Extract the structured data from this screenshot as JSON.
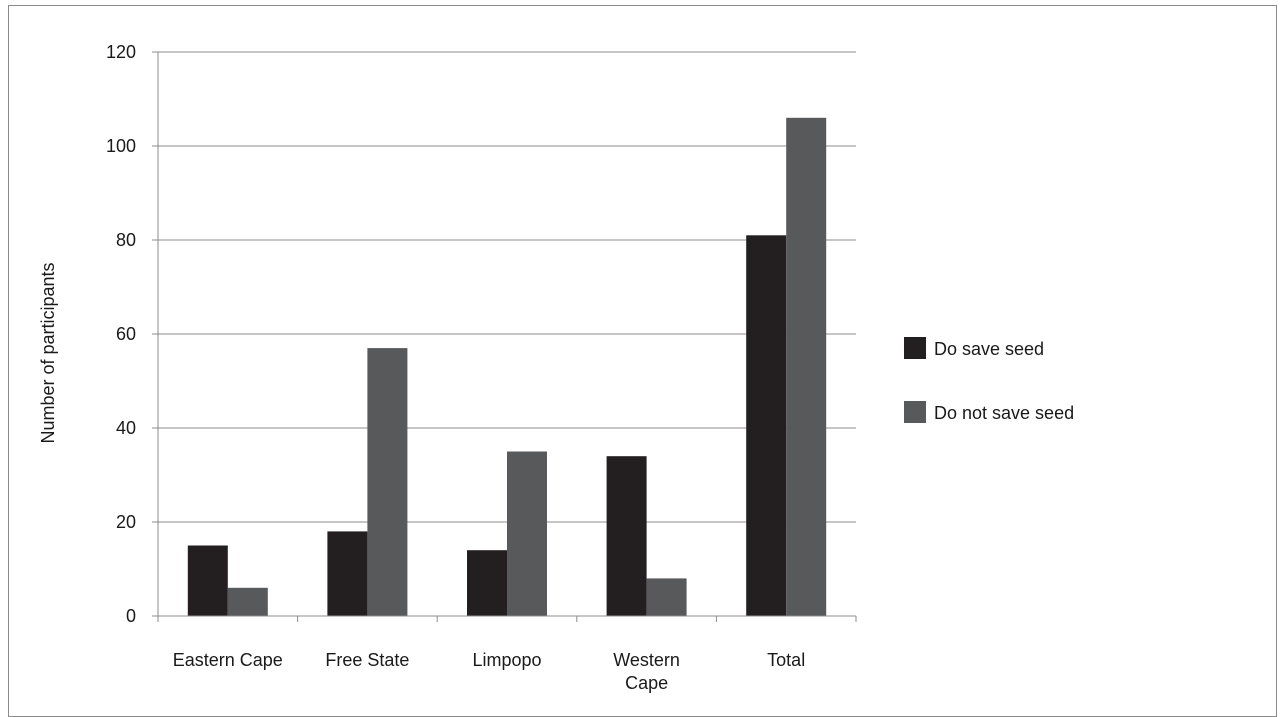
{
  "chart_data": {
    "type": "bar",
    "ylabel": "Number of participants",
    "xlabel": "",
    "ylim": [
      0,
      120
    ],
    "yticks": [
      "0",
      "20",
      "40",
      "60",
      "80",
      "100",
      "120"
    ],
    "grid": true,
    "legend_position": "right",
    "categories": [
      [
        "Eastern Cape"
      ],
      [
        "Free State"
      ],
      [
        "Limpopo"
      ],
      [
        "Western",
        "Cape"
      ],
      [
        "Total"
      ]
    ],
    "series": [
      {
        "name": "Do save seed",
        "color": "#231f20",
        "values": [
          15,
          18,
          14,
          34,
          81
        ]
      },
      {
        "name": "Do not save seed",
        "color": "#58595b",
        "values": [
          6,
          57,
          35,
          8,
          106
        ]
      }
    ]
  }
}
